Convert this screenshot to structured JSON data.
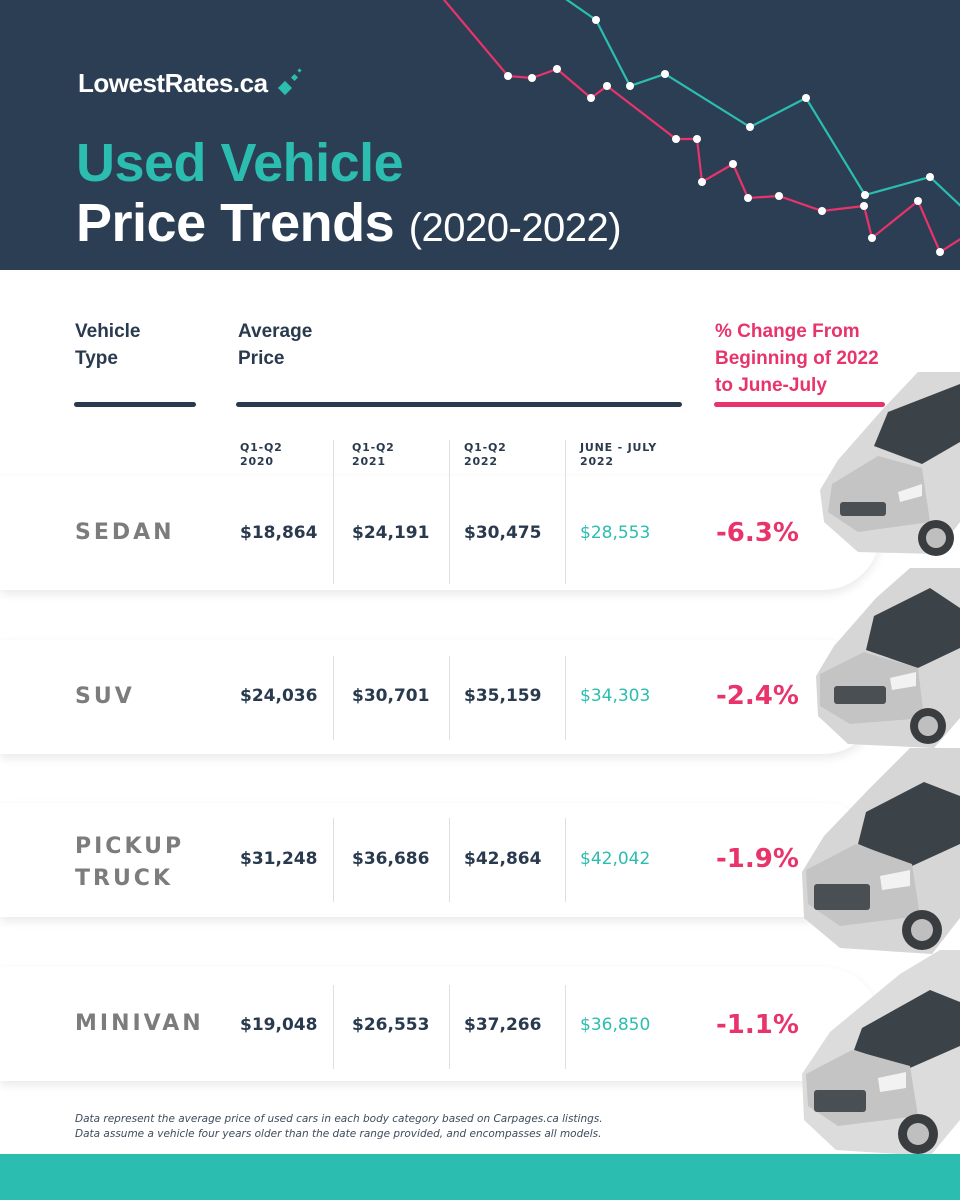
{
  "brand": {
    "name": "LowestRates",
    "tld": ".ca"
  },
  "title": {
    "line1": "Used Vehicle",
    "line2": "Price Trends",
    "years": "(2020-2022)"
  },
  "columns": {
    "vehicle_type": [
      "Vehicle",
      "Type"
    ],
    "average_price": [
      "Average",
      "Price"
    ],
    "pct_change": [
      "% Change From",
      "Beginning of 2022",
      "to June-July"
    ]
  },
  "periods": [
    [
      "Q1-Q2",
      "2020"
    ],
    [
      "Q1-Q2",
      "2021"
    ],
    [
      "Q1-Q2",
      "2022"
    ],
    [
      "JUNE - JULY",
      "2022"
    ]
  ],
  "rows": [
    {
      "type": [
        "SEDAN"
      ],
      "prices": [
        "$18,864",
        "$24,191",
        "$30,475",
        "$28,553"
      ],
      "change": "-6.3%"
    },
    {
      "type": [
        "SUV"
      ],
      "prices": [
        "$24,036",
        "$30,701",
        "$35,159",
        "$34,303"
      ],
      "change": "-2.4%"
    },
    {
      "type": [
        "PICKUP",
        "TRUCK"
      ],
      "prices": [
        "$31,248",
        "$36,686",
        "$42,864",
        "$42,042"
      ],
      "change": "-1.9%"
    },
    {
      "type": [
        "MINIVAN"
      ],
      "prices": [
        "$19,048",
        "$26,553",
        "$37,266",
        "$36,850"
      ],
      "change": "-1.1%"
    }
  ],
  "footnote": [
    "Data represent the average price of used cars in each body category based on Carpages.ca listings.",
    "Data assume a vehicle four years older than the date range provided, and encompasses all models."
  ],
  "colors": {
    "navy": "#2c3e54",
    "teal": "#2bbdb0",
    "pink": "#e8336b",
    "text": "#2a3a4e"
  },
  "icons": [
    "logo-sparkle-icon",
    "sedan-car-icon",
    "suv-car-icon",
    "pickup-truck-icon",
    "minivan-icon"
  ]
}
